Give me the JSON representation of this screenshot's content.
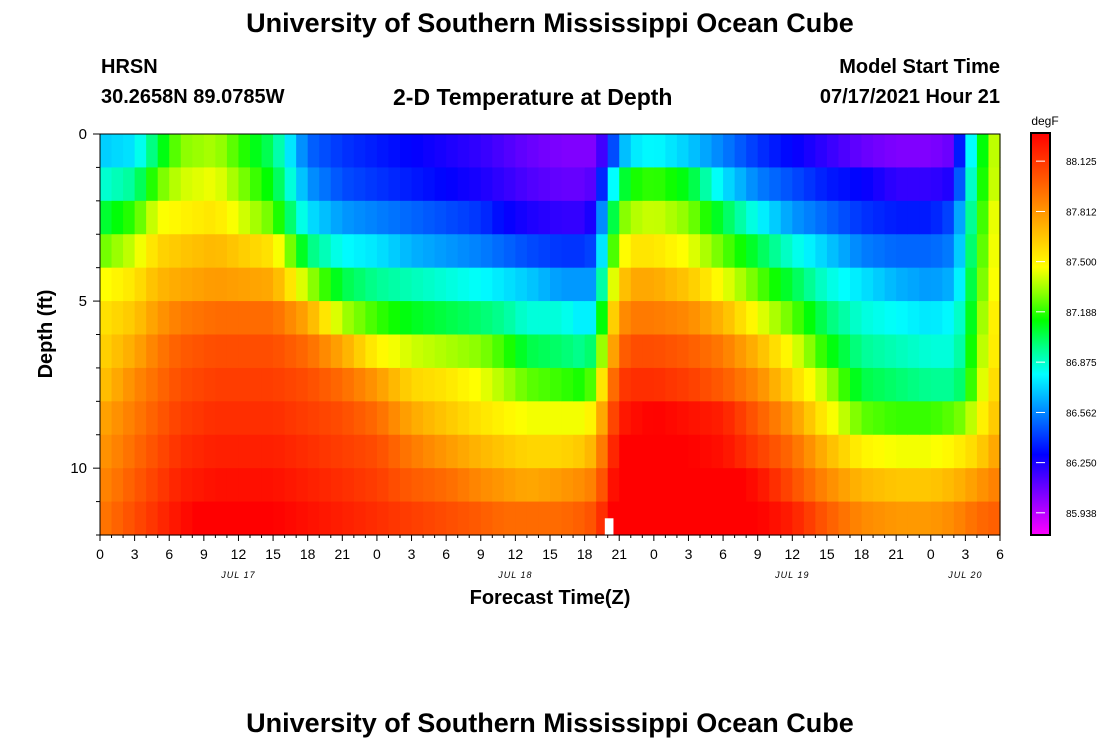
{
  "header": {
    "title": "University of Southern Mississippi Ocean Cube",
    "station": "HRSN",
    "coords": "30.2658N  89.0785W",
    "plot_title": "2-D Temperature at Depth",
    "model_start_label": "Model Start Time",
    "model_start_value": "07/17/2021 Hour 21"
  },
  "footer": {
    "title": "University of Southern Mississippi Ocean Cube"
  },
  "chart_data": {
    "type": "heatmap",
    "xlabel": "Forecast Time(Z)",
    "ylabel": "Depth (ft)",
    "x_tick_labels": [
      "0",
      "3",
      "6",
      "9",
      "12",
      "15",
      "18",
      "21",
      "0",
      "3",
      "6",
      "9",
      "12",
      "15",
      "18",
      "21",
      "0",
      "3",
      "6",
      "9",
      "12",
      "15",
      "18",
      "21",
      "0",
      "3",
      "6"
    ],
    "x_range_hours": [
      0,
      78
    ],
    "date_labels": [
      {
        "label": "JUL 17",
        "hour": 12
      },
      {
        "label": "JUL 18",
        "hour": 36
      },
      {
        "label": "JUL 19",
        "hour": 60
      },
      {
        "label": "JUL 20",
        "hour": 75
      }
    ],
    "y_ticks": [
      0,
      5,
      10
    ],
    "y_range_ft": [
      0,
      12
    ],
    "y_reversed": true,
    "colorbar": {
      "unit": "degF",
      "tick_labels": [
        "88.125",
        "87.812",
        "87.500",
        "87.188",
        "86.875",
        "86.562",
        "86.250",
        "85.938"
      ],
      "min": 85.8,
      "max": 88.3,
      "colors": [
        "#ff00ff",
        "#aa00ff",
        "#5500ff",
        "#0000ff",
        "#0055ff",
        "#00aaff",
        "#00ffff",
        "#00ff88",
        "#00ff00",
        "#88ff00",
        "#ffff00",
        "#ffcc00",
        "#ff9900",
        "#ff6600",
        "#ff3300",
        "#ff0000"
      ]
    },
    "depth_levels_ft": [
      0.5,
      1.5,
      2.5,
      3.5,
      4.5,
      5.5,
      6.5,
      7.5,
      8.5,
      9.5,
      10.5,
      11.5
    ],
    "keyframes_hours": [
      0,
      3,
      5,
      7,
      10,
      15,
      18,
      21,
      24,
      27,
      30,
      33,
      35,
      37,
      40,
      42,
      43,
      44,
      45,
      46,
      48,
      51,
      54,
      57,
      60,
      63,
      66,
      69,
      72,
      74,
      75,
      76,
      78
    ],
    "temperature_keyframes_degF": [
      [
        86.7,
        86.85,
        87.05,
        87.25,
        87.45,
        87.55,
        87.6,
        87.65,
        87.75,
        87.8,
        87.85,
        87.9
      ],
      [
        86.75,
        86.95,
        87.2,
        87.4,
        87.55,
        87.65,
        87.75,
        87.85,
        87.9,
        87.95,
        88.0,
        88.05
      ],
      [
        87.05,
        87.25,
        87.45,
        87.6,
        87.7,
        87.8,
        87.9,
        87.95,
        88.0,
        88.05,
        88.1,
        88.15
      ],
      [
        87.3,
        87.4,
        87.5,
        87.65,
        87.75,
        87.9,
        88.0,
        88.05,
        88.1,
        88.15,
        88.2,
        88.25
      ],
      [
        87.35,
        87.45,
        87.55,
        87.7,
        87.8,
        87.95,
        88.05,
        88.1,
        88.15,
        88.2,
        88.25,
        88.35
      ],
      [
        87.0,
        87.1,
        87.25,
        87.55,
        87.75,
        87.95,
        88.05,
        88.1,
        88.15,
        88.2,
        88.25,
        88.3
      ],
      [
        86.5,
        86.6,
        86.75,
        87.0,
        87.35,
        87.75,
        87.95,
        88.05,
        88.1,
        88.15,
        88.2,
        88.25
      ],
      [
        86.4,
        86.45,
        86.6,
        86.8,
        87.05,
        87.35,
        87.75,
        87.95,
        88.05,
        88.1,
        88.15,
        88.2
      ],
      [
        86.35,
        86.4,
        86.55,
        86.75,
        86.95,
        87.2,
        87.5,
        87.8,
        87.95,
        88.05,
        88.1,
        88.15
      ],
      [
        86.3,
        86.35,
        86.5,
        86.65,
        86.9,
        87.1,
        87.4,
        87.6,
        87.75,
        87.9,
        88.0,
        88.1
      ],
      [
        86.25,
        86.3,
        86.45,
        86.6,
        86.85,
        87.05,
        87.35,
        87.55,
        87.65,
        87.8,
        87.95,
        88.05
      ],
      [
        86.2,
        86.25,
        86.4,
        86.55,
        86.8,
        87.0,
        87.3,
        87.45,
        87.55,
        87.7,
        87.85,
        88.0
      ],
      [
        86.15,
        86.2,
        86.3,
        86.5,
        86.75,
        86.95,
        87.2,
        87.35,
        87.5,
        87.65,
        87.8,
        87.95
      ],
      [
        86.1,
        86.15,
        86.25,
        86.45,
        86.7,
        86.85,
        87.05,
        87.25,
        87.45,
        87.6,
        87.75,
        87.95
      ],
      [
        86.05,
        86.1,
        86.2,
        86.4,
        86.6,
        86.85,
        87.0,
        87.2,
        87.45,
        87.6,
        87.8,
        87.95
      ],
      [
        86.05,
        86.1,
        86.2,
        86.4,
        86.6,
        86.75,
        86.95,
        87.15,
        87.45,
        87.65,
        87.85,
        88.0
      ],
      [
        86.05,
        86.15,
        86.3,
        86.45,
        86.6,
        86.8,
        87.05,
        87.3,
        87.55,
        87.75,
        87.9,
        88.05
      ],
      [
        86.3,
        86.6,
        86.85,
        87.05,
        87.25,
        87.45,
        87.6,
        87.8,
        87.95,
        88.05,
        88.15,
        88.25
      ],
      [
        86.6,
        87.0,
        87.25,
        87.4,
        87.6,
        87.8,
        87.95,
        88.1,
        88.2,
        88.3,
        88.35,
        88.4
      ],
      [
        86.75,
        87.15,
        87.35,
        87.55,
        87.75,
        87.9,
        88.05,
        88.15,
        88.25,
        88.35,
        88.4,
        88.45
      ],
      [
        86.8,
        87.2,
        87.4,
        87.55,
        87.75,
        87.9,
        88.05,
        88.15,
        88.3,
        88.35,
        88.4,
        88.45
      ],
      [
        86.7,
        87.1,
        87.3,
        87.45,
        87.65,
        87.85,
        88.0,
        88.1,
        88.25,
        88.3,
        88.4,
        88.45
      ],
      [
        86.55,
        86.75,
        87.05,
        87.25,
        87.45,
        87.7,
        87.9,
        88.0,
        88.2,
        88.25,
        88.35,
        88.4
      ],
      [
        86.4,
        86.55,
        86.8,
        87.05,
        87.25,
        87.45,
        87.7,
        87.85,
        88.0,
        88.1,
        88.25,
        88.3
      ],
      [
        86.3,
        86.45,
        86.6,
        86.85,
        87.05,
        87.25,
        87.45,
        87.6,
        87.8,
        87.95,
        88.05,
        88.2
      ],
      [
        86.2,
        86.35,
        86.5,
        86.7,
        86.85,
        87.0,
        87.15,
        87.35,
        87.5,
        87.7,
        87.85,
        88.0
      ],
      [
        86.1,
        86.3,
        86.4,
        86.55,
        86.75,
        86.85,
        86.95,
        87.05,
        87.25,
        87.5,
        87.7,
        87.85
      ],
      [
        86.05,
        86.2,
        86.35,
        86.5,
        86.65,
        86.8,
        86.9,
        87.0,
        87.2,
        87.45,
        87.65,
        87.8
      ],
      [
        86.05,
        86.2,
        86.35,
        86.5,
        86.6,
        86.75,
        86.85,
        86.95,
        87.2,
        87.45,
        87.65,
        87.8
      ],
      [
        86.1,
        86.25,
        86.45,
        86.55,
        86.65,
        86.8,
        86.85,
        86.95,
        87.25,
        87.5,
        87.7,
        87.85
      ],
      [
        86.6,
        86.7,
        86.8,
        86.85,
        86.9,
        86.95,
        87.0,
        87.05,
        87.3,
        87.55,
        87.75,
        87.9
      ],
      [
        87.0,
        87.05,
        87.1,
        87.15,
        87.2,
        87.25,
        87.3,
        87.35,
        87.45,
        87.6,
        87.8,
        87.95
      ],
      [
        87.5,
        87.5,
        87.55,
        87.55,
        87.55,
        87.6,
        87.6,
        87.65,
        87.7,
        87.8,
        87.9,
        88.0
      ]
    ]
  }
}
